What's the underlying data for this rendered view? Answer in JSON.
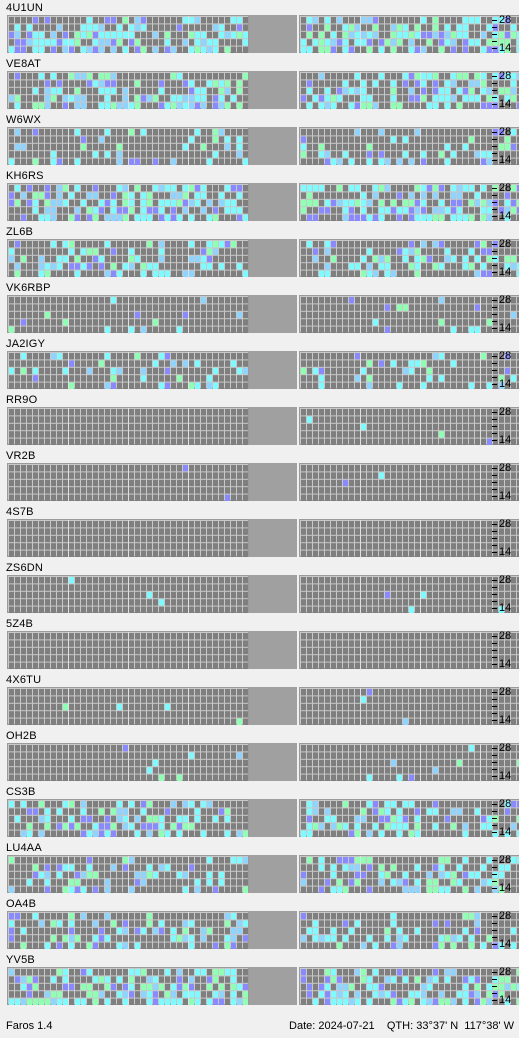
{
  "app": {
    "version": "Faros 1.4"
  },
  "footer": {
    "date_label": "Date: 2024-07-21",
    "qth_label": "QTH: 33°37' N  117°38' W"
  },
  "axis": {
    "high": "28",
    "low": "14",
    "mid_dash": "-"
  },
  "colors": {
    "cell_off": "#7f7f7f",
    "cell_strong": "#7ffbff",
    "cell_mid": "#8fd3ff",
    "cell_weak": "#8a8aff",
    "cell_green": "#8fffb3",
    "gap": "#a0a0a0"
  },
  "stations": [
    {
      "callsign": "4U1UN"
    },
    {
      "callsign": "VE8AT"
    },
    {
      "callsign": "W6WX"
    },
    {
      "callsign": "KH6RS"
    },
    {
      "callsign": "ZL6B"
    },
    {
      "callsign": "VK6RBP"
    },
    {
      "callsign": "JA2IGY"
    },
    {
      "callsign": "RR9O"
    },
    {
      "callsign": "VR2B"
    },
    {
      "callsign": "4S7B"
    },
    {
      "callsign": "ZS6DN"
    },
    {
      "callsign": "5Z4B"
    },
    {
      "callsign": "4X6TU"
    },
    {
      "callsign": "OH2B"
    },
    {
      "callsign": "CS3B"
    },
    {
      "callsign": "LU4AA"
    },
    {
      "callsign": "OA4B"
    },
    {
      "callsign": "YV5B"
    }
  ]
}
